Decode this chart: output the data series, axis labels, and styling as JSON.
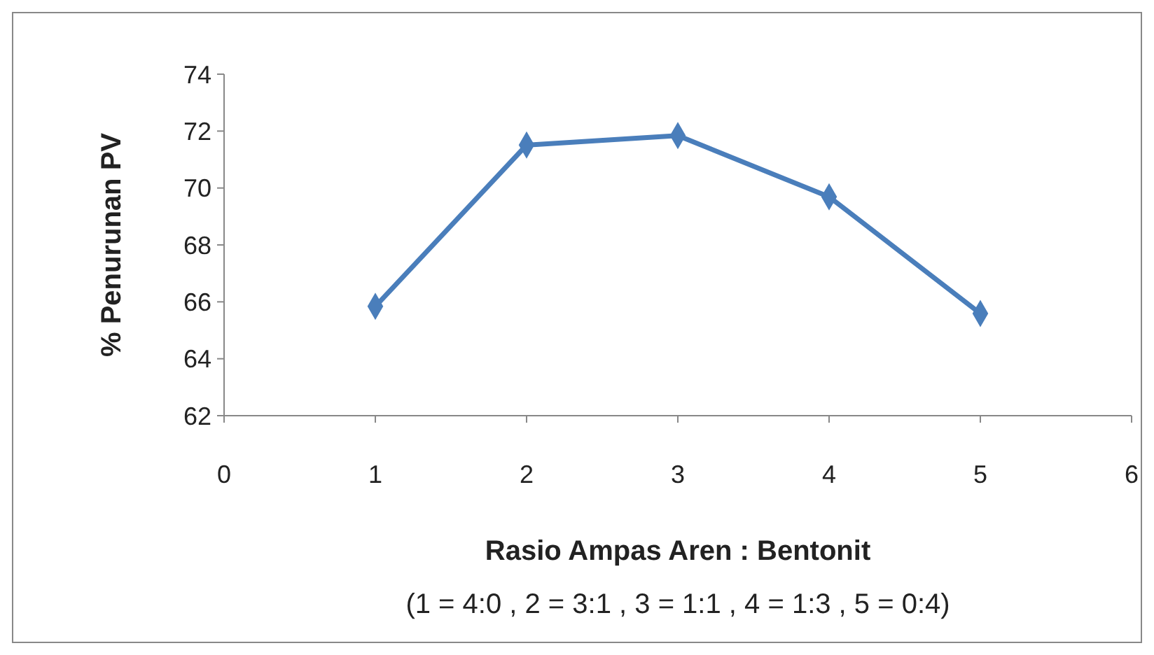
{
  "chart_data": {
    "type": "line",
    "xlabel": "Rasio Ampas Aren : Bentonit",
    "ylabel": "% Penurunan PV",
    "annotations": [
      "(1 = 4:0 , 2 = 3:1 , 3 = 1:1 , 4 = 1:3 , 5 = 0:4)"
    ],
    "x": [
      1,
      2,
      3,
      4,
      5
    ],
    "series": [
      {
        "color": "#4a7ebb",
        "values": [
          65.84,
          71.51,
          71.84,
          69.69,
          65.59
        ]
      }
    ],
    "xlim": [
      0,
      6
    ],
    "xticks": [
      0,
      1,
      2,
      3,
      4,
      5,
      6
    ],
    "ylim": [
      62,
      74
    ],
    "yticks": [
      62,
      64,
      66,
      68,
      70,
      72,
      74
    ],
    "marker": "diamond",
    "line_style": "solid"
  }
}
